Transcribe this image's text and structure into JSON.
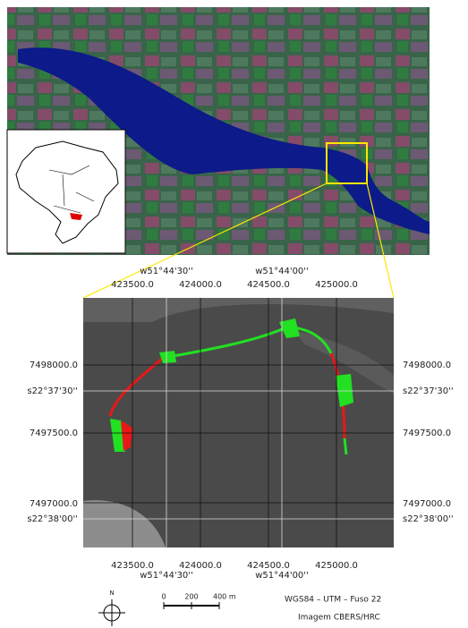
{
  "map": {
    "top_geo_labels": [
      "w51°44'30''",
      "w51°44'00''"
    ],
    "top_utm_labels": [
      "423500.0",
      "424000.0",
      "424500.0",
      "425000.0"
    ],
    "left_labels": [
      "7498000.0",
      "s22°37'30''",
      "7497500.0",
      "7497000.0",
      "s22°38'00''"
    ],
    "right_labels": [
      "7498000.0",
      "s22°37'30''",
      "7497500.0",
      "7497000.0",
      "s22°38'00''"
    ],
    "bottom_utm_labels": [
      "423500.0",
      "424000.0",
      "424500.0",
      "425000.0"
    ],
    "bottom_geo_labels": [
      "w51°44'30''",
      "w51°44'00''"
    ]
  },
  "legend": {
    "north": "N",
    "scale_labels": [
      "0",
      "200",
      "400 m"
    ],
    "projection": "WGS84   – UTM  – Fuso 22",
    "source": "Imagem  CBERS/HRC"
  }
}
